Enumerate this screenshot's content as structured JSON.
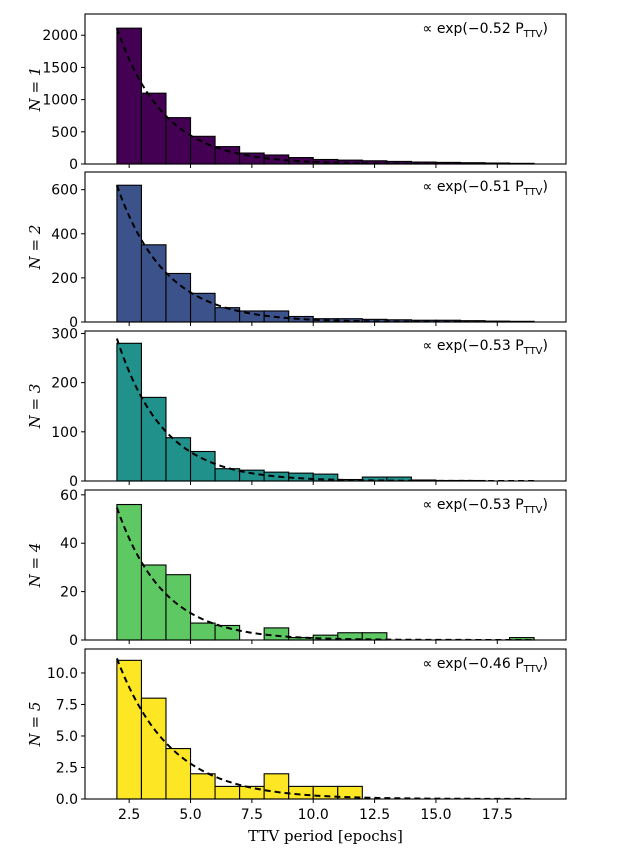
{
  "chart_data": [
    {
      "type": "bar",
      "ylabel": "N = 1",
      "annotation": "∝ exp(−0.52 P",
      "annotation_sub": "TTV",
      "annotation_close": ")",
      "color": "#440154",
      "bin_start": 2.0,
      "bin_width": 1.0,
      "values": [
        2110,
        1100,
        720,
        430,
        270,
        170,
        140,
        100,
        70,
        60,
        50,
        40,
        30,
        25,
        20,
        15,
        10
      ],
      "fit_rate": 0.52,
      "fit_amp": 5967,
      "xlim": [
        0.7,
        20.3
      ],
      "ylim": [
        0,
        2330
      ],
      "yticks": [
        0,
        500,
        1000,
        1500,
        2000
      ],
      "yticklabels": [
        "0",
        "500",
        "1000",
        "1500",
        "2000"
      ]
    },
    {
      "type": "bar",
      "ylabel": "N = 2",
      "annotation": "∝ exp(−0.51 P",
      "annotation_sub": "TTV",
      "annotation_close": ")",
      "color": "#3b528b",
      "bin_start": 2.0,
      "bin_width": 1.0,
      "values": [
        620,
        350,
        220,
        130,
        65,
        50,
        50,
        25,
        15,
        15,
        12,
        10,
        8,
        8,
        6,
        4,
        3
      ],
      "fit_rate": 0.51,
      "fit_amp": 1718,
      "xlim": [
        0.7,
        20.3
      ],
      "ylim": [
        0,
        680
      ],
      "yticks": [
        0,
        200,
        400,
        600
      ],
      "yticklabels": [
        "0",
        "200",
        "400",
        "600"
      ]
    },
    {
      "type": "bar",
      "ylabel": "N = 3",
      "annotation": "∝ exp(−0.53 P",
      "annotation_sub": "TTV",
      "annotation_close": ")",
      "color": "#21918c",
      "bin_start": 2.0,
      "bin_width": 1.0,
      "values": [
        280,
        170,
        88,
        60,
        25,
        22,
        18,
        16,
        14,
        3,
        8,
        8,
        2,
        1,
        1,
        0,
        0
      ],
      "fit_rate": 0.53,
      "fit_amp": 836,
      "xlim": [
        0.7,
        20.3
      ],
      "ylim": [
        0,
        305
      ],
      "yticks": [
        0,
        100,
        200,
        300
      ],
      "yticklabels": [
        "0",
        "100",
        "200",
        "300"
      ]
    },
    {
      "type": "bar",
      "ylabel": "N = 4",
      "annotation": "∝ exp(−0.53 P",
      "annotation_sub": "TTV",
      "annotation_close": ")",
      "color": "#5ec962",
      "bin_start": 2.0,
      "bin_width": 1.0,
      "values": [
        56,
        31,
        27,
        7,
        6,
        0,
        5,
        1,
        2,
        3,
        3,
        0,
        0,
        0,
        0,
        0,
        1
      ],
      "fit_rate": 0.53,
      "fit_amp": 158,
      "xlim": [
        0.7,
        20.3
      ],
      "ylim": [
        0,
        62
      ],
      "yticks": [
        0,
        20,
        40,
        60
      ],
      "yticklabels": [
        "0",
        "20",
        "40",
        "60"
      ]
    },
    {
      "type": "bar",
      "ylabel": "N = 5",
      "annotation": "∝ exp(−0.46 P",
      "annotation_sub": "TTV",
      "annotation_close": ")",
      "color": "#fde725",
      "bin_start": 2.0,
      "bin_width": 1.0,
      "values": [
        11,
        8,
        4,
        2,
        1,
        1,
        2,
        1,
        1,
        1,
        0,
        0,
        0,
        0,
        0,
        0,
        0
      ],
      "fit_rate": 0.46,
      "fit_amp": 28,
      "xlim": [
        0.7,
        20.3
      ],
      "ylim": [
        0,
        11.9
      ],
      "yticks": [
        0,
        2.5,
        5.0,
        7.5,
        10.0
      ],
      "yticklabels": [
        "0.0",
        "2.5",
        "5.0",
        "7.5",
        "10.0"
      ]
    }
  ],
  "shared_x": {
    "xlabel": "TTV period [epochs]",
    "xticks": [
      2.5,
      5.0,
      7.5,
      10.0,
      12.5,
      15.0,
      17.5
    ],
    "xticklabels": [
      "2.5",
      "5.0",
      "7.5",
      "10.0",
      "12.5",
      "15.0",
      "17.5"
    ]
  },
  "style": {
    "edge_color": "#000000",
    "fit_line_color": "#000000",
    "fit_line_style": "dashed",
    "grid": false
  }
}
